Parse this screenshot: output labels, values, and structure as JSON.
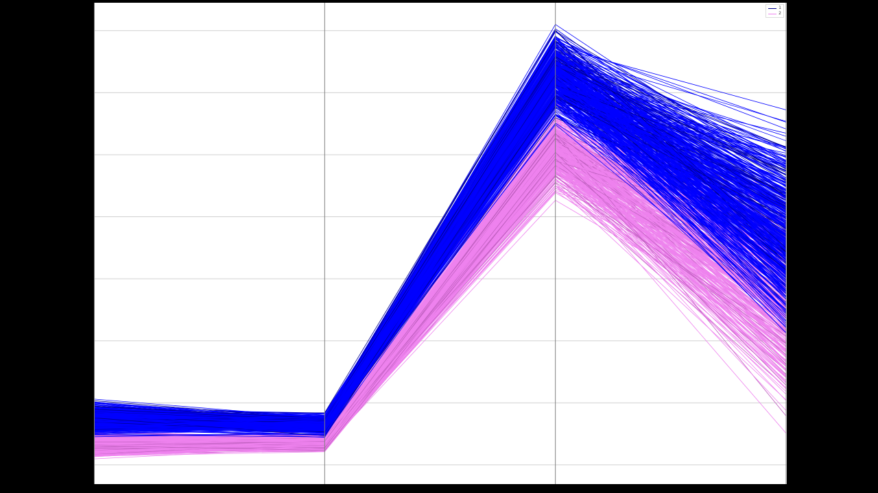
{
  "chart_data": {
    "type": "parallel_coordinates",
    "title": "",
    "xlabel": "",
    "ylabel": "",
    "axes": [
      "",
      "",
      "",
      ""
    ],
    "tick_labels_visible": false,
    "grid": true,
    "grid_values": [
      0,
      1,
      2,
      3,
      4,
      5,
      6,
      7
    ],
    "ylim": [
      -0.31,
      7.45
    ],
    "legend": {
      "position": "upper right",
      "entries": [
        {
          "label": "1",
          "color": "#0000ff"
        },
        {
          "label": "2",
          "color": "#ee82ee"
        }
      ]
    },
    "series": [
      {
        "name": "1",
        "color": "#0000ff",
        "count": 450,
        "ranges": [
          [
            0.43,
            1.06
          ],
          [
            0.43,
            0.89
          ],
          [
            5.29,
            7.1
          ],
          [
            1.0,
            6.95
          ]
        ],
        "typical": [
          0.75,
          0.66,
          6.3,
          3.8
        ]
      },
      {
        "name": "2",
        "color": "#ee82ee",
        "count": 350,
        "ranges": [
          [
            0.04,
            0.54
          ],
          [
            0.15,
            0.54
          ],
          [
            4.18,
            5.84
          ],
          [
            0.3,
            6.7
          ]
        ],
        "typical": [
          0.32,
          0.35,
          5.1,
          2.6
        ]
      }
    ]
  },
  "legend": {
    "items": [
      {
        "label": "1",
        "color": "#0000ff"
      },
      {
        "label": "2",
        "color": "#ee82ee"
      }
    ]
  }
}
